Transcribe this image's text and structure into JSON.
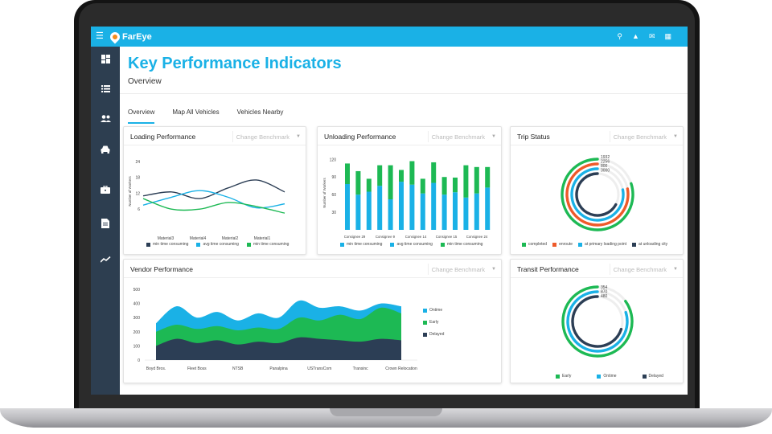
{
  "app": {
    "logo_text": "FarEye"
  },
  "topbar": {
    "icons": [
      "search-icon",
      "bell-icon",
      "mail-icon",
      "apps-grid-icon"
    ]
  },
  "sidebar": {
    "items": [
      "dashboard-icon",
      "list-icon",
      "users-icon",
      "car-icon",
      "briefcase-icon",
      "document-icon",
      "trend-icon"
    ]
  },
  "header": {
    "title": "Key Performance Indicators",
    "subtitle": "Overview"
  },
  "tabs": [
    {
      "label": "Overview",
      "active": true
    },
    {
      "label": "Map All Vehicles",
      "active": false
    },
    {
      "label": "Vehicles Nearby",
      "active": false
    }
  ],
  "benchmark_placeholder": "Change Benchmark",
  "colors": {
    "navy": "#2c3e55",
    "blue": "#1ab1e6",
    "green": "#1db954",
    "orange": "#ee5a2a",
    "topbar": "#1ab1e6",
    "sidebar": "#2d3e50"
  },
  "cards": {
    "loading": {
      "title": "Loading Performance"
    },
    "unloading": {
      "title": "Unloading Performance"
    },
    "trip": {
      "title": "Trip Status"
    },
    "vendor": {
      "title": "Vendor Performance"
    },
    "transit": {
      "title": "Transit Performance"
    }
  },
  "chart_data": [
    {
      "id": "loading",
      "type": "line",
      "ylabel": "Number of Workers",
      "yticks": [
        24,
        18,
        12,
        6
      ],
      "ylim": [
        0,
        27
      ],
      "categories": [
        "Material3",
        "Material4",
        "Material2",
        "Material1"
      ],
      "x": [
        0,
        1,
        2,
        3,
        4,
        5
      ],
      "series": [
        {
          "name": "min time consuming",
          "color": "#2c3e55",
          "values": [
            11,
            12.5,
            10,
            14,
            17,
            12.5
          ]
        },
        {
          "name": "avg time consuming",
          "color": "#1ab1e6",
          "values": [
            7.5,
            10.5,
            13,
            10.5,
            6.5,
            8
          ]
        },
        {
          "name": "min time consuming",
          "color": "#1db954",
          "values": [
            10,
            6,
            6,
            8.5,
            7,
            4.5
          ]
        }
      ]
    },
    {
      "id": "unloading",
      "type": "bar",
      "ylabel": "Number of Workers",
      "yticks": [
        120,
        90,
        60,
        30
      ],
      "ylim": [
        0,
        130
      ],
      "category_labels": [
        "Consignee 29",
        "Consignee 9",
        "Consignee 14",
        "Consignee 15",
        "Consignee 24"
      ],
      "series": [
        {
          "name": "min time consuming",
          "color": "#2c3e55",
          "values": []
        },
        {
          "name": "avg time consuming",
          "color": "#1ab1e6",
          "values": [
            78,
            60,
            65,
            75,
            52,
            82,
            77,
            62,
            80,
            60,
            64,
            55,
            62,
            72
          ]
        },
        {
          "name": "min time consuming",
          "color": "#1db954",
          "values": [
            35,
            40,
            22,
            35,
            58,
            20,
            40,
            25,
            35,
            30,
            25,
            55,
            45,
            35
          ]
        }
      ]
    },
    {
      "id": "trip",
      "type": "radial-bar",
      "series": [
        {
          "name": "completed",
          "color": "#1db954",
          "label": "3000",
          "fraction": 0.8
        },
        {
          "name": "enroute",
          "color": "#ee5a2a",
          "label": "800",
          "fraction": 0.78
        },
        {
          "name": "at primary loading point",
          "color": "#1ab1e6",
          "label": "2256",
          "fraction": 0.78
        },
        {
          "name": "at unloading city",
          "color": "#2c3e55",
          "label": "1932",
          "fraction": 0.67
        }
      ]
    },
    {
      "id": "vendor",
      "type": "area",
      "yticks": [
        500,
        400,
        300,
        200,
        100,
        0
      ],
      "ylim": [
        0,
        500
      ],
      "categories": [
        "Boyd Bros.",
        "Fleet Boss",
        "NTSB",
        "Panalpina",
        "USTransCom",
        "Transinc",
        "Crown Relocation"
      ],
      "x": [
        0,
        0.5,
        1,
        1.5,
        2,
        2.5,
        3,
        3.5,
        4,
        4.5,
        5,
        5.5,
        6
      ],
      "series": [
        {
          "name": "Ontime",
          "color": "#1ab1e6",
          "values": [
            260,
            380,
            300,
            340,
            280,
            330,
            300,
            420,
            370,
            380,
            350,
            400,
            380
          ]
        },
        {
          "name": "Early",
          "color": "#1db954",
          "values": [
            200,
            250,
            220,
            240,
            210,
            230,
            220,
            300,
            280,
            320,
            290,
            370,
            330
          ]
        },
        {
          "name": "Delayed",
          "color": "#2c3e55",
          "values": [
            100,
            150,
            120,
            140,
            110,
            130,
            120,
            160,
            150,
            140,
            130,
            150,
            140
          ]
        }
      ]
    },
    {
      "id": "transit",
      "type": "radial-bar",
      "series": [
        {
          "name": "Early",
          "color": "#1db954",
          "label": "480",
          "fraction": 0.85
        },
        {
          "name": "Ontime",
          "color": "#1ab1e6",
          "label": "870",
          "fraction": 0.8
        },
        {
          "name": "Delayed",
          "color": "#2c3e55",
          "label": "354",
          "fraction": 0.7
        }
      ]
    }
  ]
}
